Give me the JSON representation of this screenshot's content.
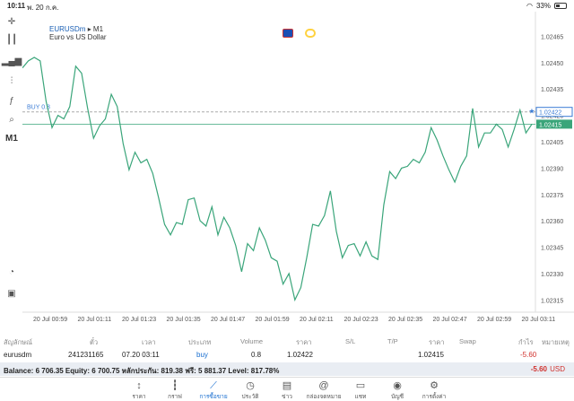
{
  "status": {
    "time": "10:11",
    "date": "พ. 20 ก.ค.",
    "battery": "33%"
  },
  "chart": {
    "symbol": "EURUSDm",
    "timeframe_sep": "▸ M1",
    "description": "Euro vs US Dollar",
    "buy_label": "BUY 0.8",
    "buy_price": "1.02422",
    "current_price": "1.02415",
    "y_ticks": [
      "1.02465",
      "1.02450",
      "1.02435",
      "1.02420",
      "1.02405",
      "1.02390",
      "1.02375",
      "1.02360",
      "1.02345",
      "1.02330",
      "1.02315"
    ],
    "x_ticks": [
      "20 Jul 00:59",
      "20 Jul 01:11",
      "20 Jul 01:23",
      "20 Jul 01:35",
      "20 Jul 01:47",
      "20 Jul 01:59",
      "20 Jul 02:11",
      "20 Jul 02:23",
      "20 Jul 02:35",
      "20 Jul 02:47",
      "20 Jul 02:59",
      "20 Jul 03:11"
    ],
    "line_color": "#3aa57a",
    "buy_line_color": "#aaaaaa"
  },
  "chart_data": {
    "type": "line",
    "xlabel": "",
    "ylabel": "",
    "ylim": [
      1.02308,
      1.02478
    ],
    "series": [
      {
        "values": [
          1.02447,
          1.02451,
          1.02453,
          1.02451,
          1.02428,
          1.02413,
          1.0242,
          1.02418,
          1.02425,
          1.02448,
          1.02444,
          1.02424,
          1.02407,
          1.02414,
          1.02418,
          1.02432,
          1.02425,
          1.02404,
          1.02389,
          1.02399,
          1.02393,
          1.02395,
          1.02387,
          1.02373,
          1.02358,
          1.02352,
          1.02359,
          1.02358,
          1.02372,
          1.02373,
          1.0236,
          1.02357,
          1.02368,
          1.02352,
          1.02362,
          1.02356,
          1.02346,
          1.02331,
          1.02347,
          1.02343,
          1.02356,
          1.02349,
          1.02339,
          1.02337,
          1.02324,
          1.0233,
          1.02315,
          1.02322,
          1.02339,
          1.02358,
          1.02357,
          1.02363,
          1.02377,
          1.02354,
          1.02339,
          1.02346,
          1.02347,
          1.0234,
          1.02348,
          1.0234,
          1.02338,
          1.02369,
          1.02388,
          1.02384,
          1.0239,
          1.02391,
          1.02395,
          1.02393,
          1.02399,
          1.02413,
          1.02406,
          1.02397,
          1.02389,
          1.02382,
          1.02391,
          1.02397,
          1.02424,
          1.02402,
          1.0241,
          1.0241,
          1.02415,
          1.02412,
          1.02402,
          1.02412,
          1.02423,
          1.0241,
          1.02415
        ]
      }
    ]
  },
  "toolbar": [
    "crosshair-icon",
    "candles-icon",
    "bars-icon",
    "indicators-icon",
    "function-icon",
    "objects-icon",
    "M1"
  ],
  "table": {
    "headers": [
      "สัญลักษณ์",
      "ตั๋ว",
      "เวลา",
      "ประเภท",
      "Volume",
      "ราคา",
      "S/L",
      "T/P",
      "ราคา",
      "Swap",
      "กำไร",
      "หมายเหตุ"
    ],
    "row": {
      "symbol": "eurusdm",
      "ticket": "241231165",
      "time": "07.20 03:11",
      "type": "buy",
      "volume": "0.8",
      "open": "1.02422",
      "price": "1.02415",
      "profit": "-5.60"
    }
  },
  "balance": {
    "text": "Balance: 6 706.35 Equity: 6 700.75 หลักประกัน: 819.38 ฟรี: 5 881.37 Level: 817.78%",
    "pl": "-5.60",
    "currency": "USD"
  },
  "tabs": [
    {
      "label": "ราคา",
      "icon": "↕"
    },
    {
      "label": "กราฟ",
      "icon": "┇"
    },
    {
      "label": "การซื้อขาย",
      "icon": "⟋"
    },
    {
      "label": "ประวัติ",
      "icon": "◷"
    },
    {
      "label": "ข่าว",
      "icon": "▤"
    },
    {
      "label": "กล่องจดหมาย",
      "icon": "@"
    },
    {
      "label": "แชท",
      "icon": "▭"
    },
    {
      "label": "บัญชี",
      "icon": "◉"
    },
    {
      "label": "การตั้งค่า",
      "icon": "⚙"
    }
  ]
}
